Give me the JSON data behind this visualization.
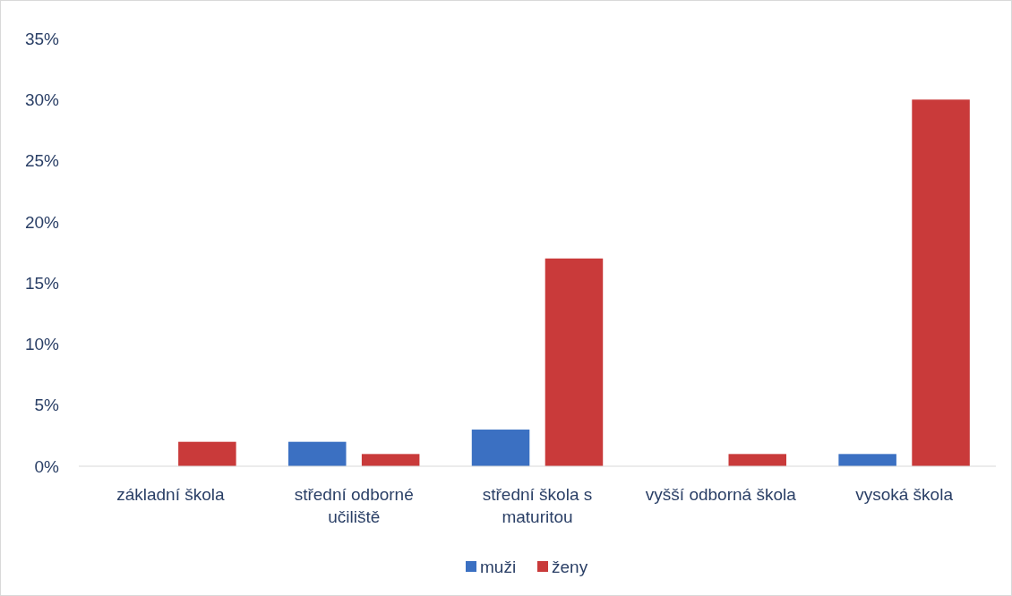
{
  "chart_data": {
    "type": "bar",
    "categories": [
      "základní škola",
      "střední odborné učiliště",
      "střední škola s maturitou",
      "vyšší odborná škola",
      "vysoká škola"
    ],
    "series": [
      {
        "name": "muži",
        "color": "#3b70c2",
        "values": [
          0,
          2,
          3,
          0,
          1
        ]
      },
      {
        "name": "ženy",
        "color": "#c93a3a",
        "values": [
          2,
          1,
          17,
          1,
          30
        ]
      }
    ],
    "ylim": [
      0,
      35
    ],
    "yticks": [
      {
        "value": 0,
        "label": "0%"
      },
      {
        "value": 5,
        "label": "5%"
      },
      {
        "value": 10,
        "label": "10%"
      },
      {
        "value": 15,
        "label": "15%"
      },
      {
        "value": 20,
        "label": "20%"
      },
      {
        "value": 25,
        "label": "25%"
      },
      {
        "value": 30,
        "label": "30%"
      },
      {
        "value": 35,
        "label": "35%"
      }
    ],
    "grid": false,
    "legend": "bottom"
  }
}
